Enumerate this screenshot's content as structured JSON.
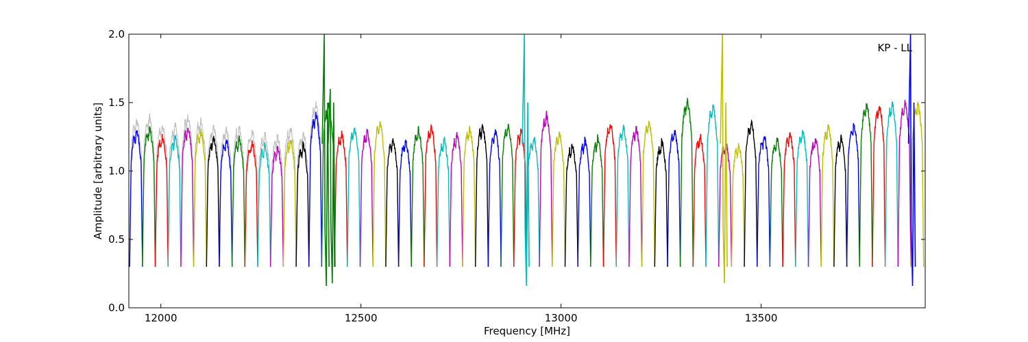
{
  "chart_data": {
    "type": "line",
    "xlabel": "Frequency [MHz]",
    "ylabel": "Amplitude [arbitrary units]",
    "xlim": [
      11920,
      13910
    ],
    "ylim": [
      0.0,
      2.0
    ],
    "xticks": [
      12000,
      12500,
      13000,
      13500
    ],
    "xtick_labels": [
      "12000",
      "12500",
      "13000",
      "13500"
    ],
    "yticks": [
      0.0,
      0.5,
      1.0,
      1.5,
      2.0
    ],
    "ytick_labels": [
      "0.0",
      "0.5",
      "1.0",
      "1.5",
      "2.0"
    ],
    "grid": false,
    "annotation": "KP - LL",
    "channel_width_mhz": 32,
    "first_channel_start_mhz": 11922,
    "color_cycle": [
      "#0000ff",
      "#008000",
      "#ff0000",
      "#00bfbf",
      "#bf00bf",
      "#bfbf00",
      "#000000"
    ],
    "background_series_color": "#c0c0c0",
    "channel_peak_levels": [
      1.3,
      1.32,
      1.26,
      1.26,
      1.33,
      1.3,
      1.25,
      1.23,
      1.25,
      1.22,
      1.2,
      1.18,
      1.24,
      1.2,
      1.42,
      1.48,
      1.28,
      1.32,
      1.3,
      1.36,
      1.24,
      1.23,
      1.31,
      1.33,
      1.24,
      1.27,
      1.32,
      1.34,
      1.3,
      1.34,
      1.3,
      1.25,
      1.42,
      1.28,
      1.2,
      1.23,
      1.25,
      1.35,
      1.33,
      1.32,
      1.37,
      1.22,
      1.3,
      1.52,
      1.26,
      1.48,
      1.21,
      1.2,
      1.36,
      1.26,
      1.24,
      1.28,
      1.3,
      1.24,
      1.33,
      1.25,
      1.35,
      1.5,
      1.48,
      1.5,
      1.5,
      1.5
    ],
    "spikes": [
      {
        "x": 12410,
        "y_max": 2.0,
        "y_min": 0.16,
        "series_color": "#008000"
      },
      {
        "x": 12425,
        "y_max": 1.6,
        "y_min": 0.18,
        "series_color": "#008000"
      },
      {
        "x": 12910,
        "y_max": 2.0,
        "y_min": 0.16,
        "series_color": "#00bfbf"
      },
      {
        "x": 13405,
        "y_max": 2.0,
        "y_min": 0.18,
        "series_color": "#bfbf00"
      },
      {
        "x": 13875,
        "y_max": 2.0,
        "y_min": 0.16,
        "series_color": "#0000ff"
      }
    ]
  }
}
